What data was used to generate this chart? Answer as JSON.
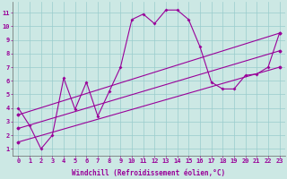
{
  "xlabel": "Windchill (Refroidissement éolien,°C)",
  "bg_color": "#cce8e4",
  "line_color": "#990099",
  "grid_color": "#99cccc",
  "curve1_x": [
    0,
    1,
    2,
    3,
    4,
    5,
    6,
    7,
    8,
    9,
    10,
    11,
    12,
    13,
    14,
    15,
    16,
    17,
    18,
    19,
    20,
    21,
    22,
    23
  ],
  "curve1_y": [
    4.0,
    2.7,
    1.0,
    2.0,
    6.2,
    3.9,
    5.9,
    3.4,
    5.2,
    7.0,
    10.5,
    10.9,
    10.2,
    11.2,
    11.2,
    10.5,
    8.5,
    5.9,
    5.4,
    5.4,
    6.4,
    6.5,
    7.0,
    9.5
  ],
  "line2_x": [
    0,
    23
  ],
  "line2_y": [
    3.5,
    9.5
  ],
  "line3_x": [
    0,
    23
  ],
  "line3_y": [
    2.5,
    8.2
  ],
  "line4_x": [
    0,
    23
  ],
  "line4_y": [
    1.5,
    7.0
  ],
  "xlim": [
    -0.5,
    23.5
  ],
  "ylim": [
    0.5,
    11.8
  ],
  "yticks": [
    1,
    2,
    3,
    4,
    5,
    6,
    7,
    8,
    9,
    10,
    11
  ],
  "xticks": [
    0,
    1,
    2,
    3,
    4,
    5,
    6,
    7,
    8,
    9,
    10,
    11,
    12,
    13,
    14,
    15,
    16,
    17,
    18,
    19,
    20,
    21,
    22,
    23
  ],
  "tick_fontsize": 5,
  "xlabel_fontsize": 5.5
}
